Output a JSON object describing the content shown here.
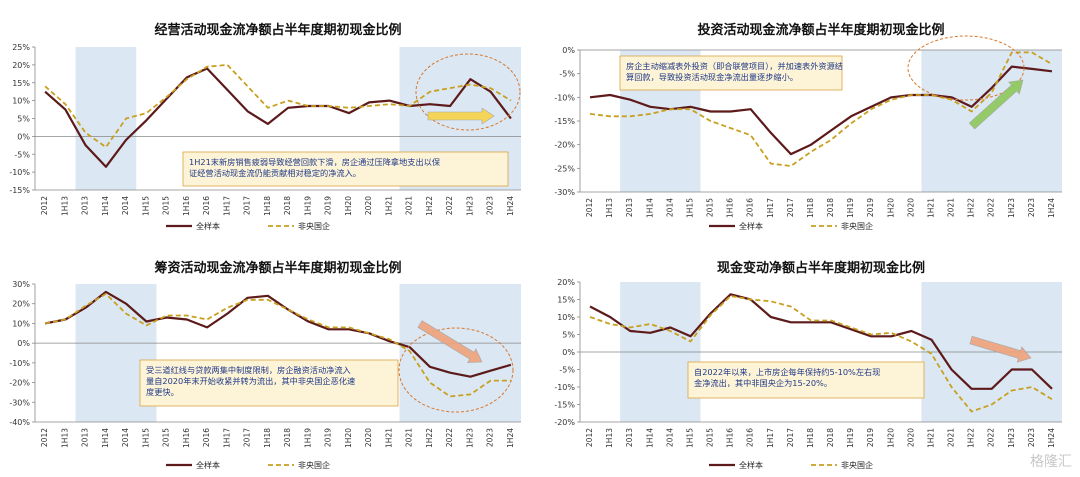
{
  "legend": {
    "series_a": "全样本",
    "series_b": "非央国企"
  },
  "colors": {
    "series_a": "#5c1a1a",
    "series_b": "#c8a020",
    "shade": "#dbe7f3",
    "note_bg": "#fdf3d6",
    "note_border": "#d9a441",
    "ellipse": "#d9782d",
    "arrow_green": "#8dc85a",
    "arrow_orange": "#f0a37b",
    "arrow_yellow": "#f7d448"
  },
  "watermark": "格隆汇",
  "chart_data": [
    {
      "type": "line",
      "title": "经营活动现金流净额占半年度期初现金比例",
      "x": [
        "2012",
        "1H13",
        "2013",
        "1H14",
        "2014",
        "1H15",
        "2015",
        "1H16",
        "2016",
        "1H17",
        "2017",
        "1H18",
        "2018",
        "1H19",
        "2019",
        "1H20",
        "2020",
        "1H21",
        "2021",
        "1H22",
        "2022",
        "1H23",
        "2023",
        "1H24"
      ],
      "ylim": [
        -15,
        25
      ],
      "yticks": [
        -15,
        -10,
        -5,
        0,
        5,
        10,
        15,
        20,
        25
      ],
      "shade_ranges": [
        [
          "2013",
          "2014"
        ],
        [
          "2021",
          "1H24"
        ]
      ],
      "series": [
        {
          "name": "全样本",
          "values": [
            12.5,
            7.5,
            -2.5,
            -8.5,
            -1,
            4.5,
            10.5,
            16.5,
            19,
            13,
            7,
            3.5,
            8,
            8.5,
            8.5,
            6.5,
            9.5,
            10,
            8.5,
            9,
            8.5,
            16,
            12.5,
            5
          ]
        },
        {
          "name": "非央国企",
          "values": [
            14,
            9,
            1,
            -3,
            5,
            6.5,
            11,
            16,
            19.5,
            20,
            14,
            8,
            10,
            8.5,
            8.5,
            8,
            8.5,
            9,
            8.5,
            12.5,
            13.5,
            14.5,
            13.5,
            10
          ]
        }
      ],
      "note": "1H21末新房销售疲弱导致经营回款下滑，房企通过压降拿地支出以保证经营活动现金流仍能贡献相对稳定的净流入。"
    },
    {
      "type": "line",
      "title": "投资活动现金流净额占半年度期初现金比例",
      "x": [
        "2012",
        "1H13",
        "2013",
        "1H14",
        "2014",
        "1H15",
        "2015",
        "1H16",
        "2016",
        "1H17",
        "2017",
        "1H18",
        "2018",
        "1H19",
        "2019",
        "1H20",
        "2020",
        "1H21",
        "2021",
        "1H22",
        "2022",
        "1H23",
        "2023",
        "1H24"
      ],
      "ylim": [
        -30,
        0
      ],
      "yticks": [
        -30,
        -25,
        -20,
        -15,
        -10,
        -5,
        0
      ],
      "shade_ranges": [
        [
          "2013",
          "1H15"
        ],
        [
          "1H21",
          "1H24"
        ]
      ],
      "series": [
        {
          "name": "全样本",
          "values": [
            -10,
            -9.5,
            -10.5,
            -12,
            -12.5,
            -12,
            -13,
            -13,
            -12.5,
            -17.5,
            -22,
            -20,
            -17,
            -14,
            -12,
            -10,
            -9.5,
            -9.5,
            -10,
            -12,
            -8,
            -3.5,
            -4,
            -4.5
          ]
        },
        {
          "name": "非央国企",
          "values": [
            -13.5,
            -14,
            -14,
            -13.5,
            -12.5,
            -12.5,
            -15,
            -16.5,
            -18,
            -24,
            -24.5,
            -21.5,
            -19,
            -15.5,
            -12.5,
            -10.5,
            -9.5,
            -9.5,
            -10.5,
            -13,
            -9,
            -0.5,
            -0.5,
            -3
          ]
        }
      ],
      "note": "房企主动缩减表外投资（即合联营项目），并加速表外资源结算回款，导致投资活动现金净流出量逐步缩小。"
    },
    {
      "type": "line",
      "title": "筹资活动现金流净额占半年度期初现金比例",
      "x": [
        "2012",
        "1H13",
        "2013",
        "1H14",
        "2014",
        "1H15",
        "2015",
        "1H16",
        "2016",
        "1H17",
        "2017",
        "1H18",
        "2018",
        "1H19",
        "2019",
        "1H20",
        "2020",
        "1H21",
        "2021",
        "1H22",
        "2022",
        "1H23",
        "2023",
        "1H24"
      ],
      "ylim": [
        -40,
        30
      ],
      "yticks": [
        -40,
        -30,
        -20,
        -10,
        0,
        10,
        20,
        30
      ],
      "shade_ranges": [
        [
          "2013",
          "1H15"
        ],
        [
          "2021",
          "1H24"
        ]
      ],
      "series": [
        {
          "name": "全样本",
          "values": [
            10,
            12,
            18,
            26,
            20,
            11,
            13,
            12,
            8,
            15,
            23,
            24,
            17,
            11,
            7,
            7,
            5,
            1,
            -2,
            -12,
            -15,
            -17,
            -14,
            -11
          ]
        },
        {
          "name": "非央国企",
          "values": [
            10,
            12,
            19,
            25,
            15,
            9,
            14,
            14,
            12,
            18,
            22,
            22,
            17,
            12,
            8,
            8,
            5,
            2,
            -4,
            -20,
            -27,
            -26,
            -19,
            -19
          ]
        }
      ],
      "note": "受三道红线与贷款两集中制度限制，房企融资活动净流入量自2020年末开始收紧并转为流出，其中非央国企恶化速度更快。"
    },
    {
      "type": "line",
      "title": "现金变动净额占半年度期初现金比例",
      "x": [
        "2012",
        "1H13",
        "2013",
        "1H14",
        "2014",
        "1H15",
        "2015",
        "1H16",
        "2016",
        "1H17",
        "2017",
        "1H18",
        "2018",
        "1H19",
        "2019",
        "1H20",
        "2020",
        "1H21",
        "2021",
        "1H22",
        "2022",
        "1H23",
        "2023",
        "1H24"
      ],
      "ylim": [
        -20,
        20
      ],
      "yticks": [
        -20,
        -15,
        -10,
        -5,
        0,
        5,
        10,
        15,
        20
      ],
      "shade_ranges": [
        [
          "2013",
          "1H15"
        ],
        [
          "1H21",
          "1H24"
        ]
      ],
      "series": [
        {
          "name": "全样本",
          "values": [
            13,
            10,
            6,
            5.5,
            7,
            4.5,
            11,
            16.5,
            15,
            10,
            8.5,
            8.5,
            8.5,
            6.5,
            4.5,
            4.5,
            6,
            3.5,
            -5,
            -10.5,
            -10.5,
            -5,
            -5,
            -10.5
          ]
        },
        {
          "name": "非央国企",
          "values": [
            10,
            8,
            7,
            8,
            6,
            3,
            10.5,
            16,
            15,
            14.5,
            13,
            9,
            9,
            7,
            5,
            5.5,
            3,
            -0.5,
            -10,
            -17,
            -15,
            -11,
            -10,
            -13.5
          ]
        }
      ],
      "note": "自2022年以来，上市房企每年保持约5-10%左右现金净流出，其中非国央企为15-20%。"
    }
  ]
}
